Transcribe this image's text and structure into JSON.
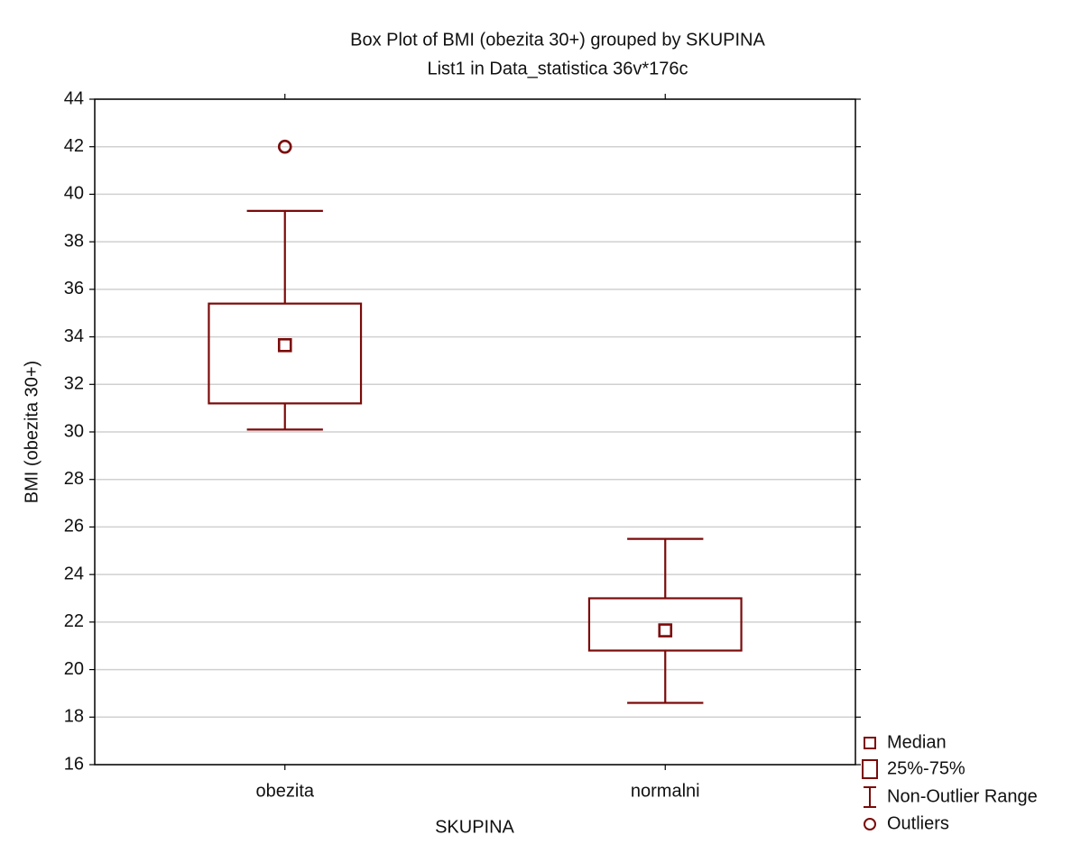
{
  "chart_data": {
    "type": "box",
    "title": "Box Plot of BMI (obezita 30+) grouped by  SKUPINA",
    "subtitle": "List1 in Data_statistica 36v*176c",
    "x_label": "SKUPINA",
    "y_label": "BMI (obezita 30+)",
    "categories": [
      "obezita",
      "normalni"
    ],
    "median": [
      33.65,
      21.65
    ],
    "q1": [
      31.2,
      20.8
    ],
    "q3": [
      35.4,
      23.0
    ],
    "whisker_low": [
      30.1,
      18.6
    ],
    "whisker_high": [
      39.3,
      25.5
    ],
    "outliers": [
      [
        42
      ],
      []
    ],
    "color": "#7b0a0a",
    "ylim": [
      16,
      44
    ],
    "yticks": [
      16,
      18,
      20,
      22,
      24,
      26,
      28,
      30,
      32,
      34,
      36,
      38,
      40,
      42,
      44
    ],
    "grid": true,
    "legend_entries": [
      "Median",
      "25%-75%",
      "Non-Outlier Range",
      "Outliers"
    ]
  }
}
